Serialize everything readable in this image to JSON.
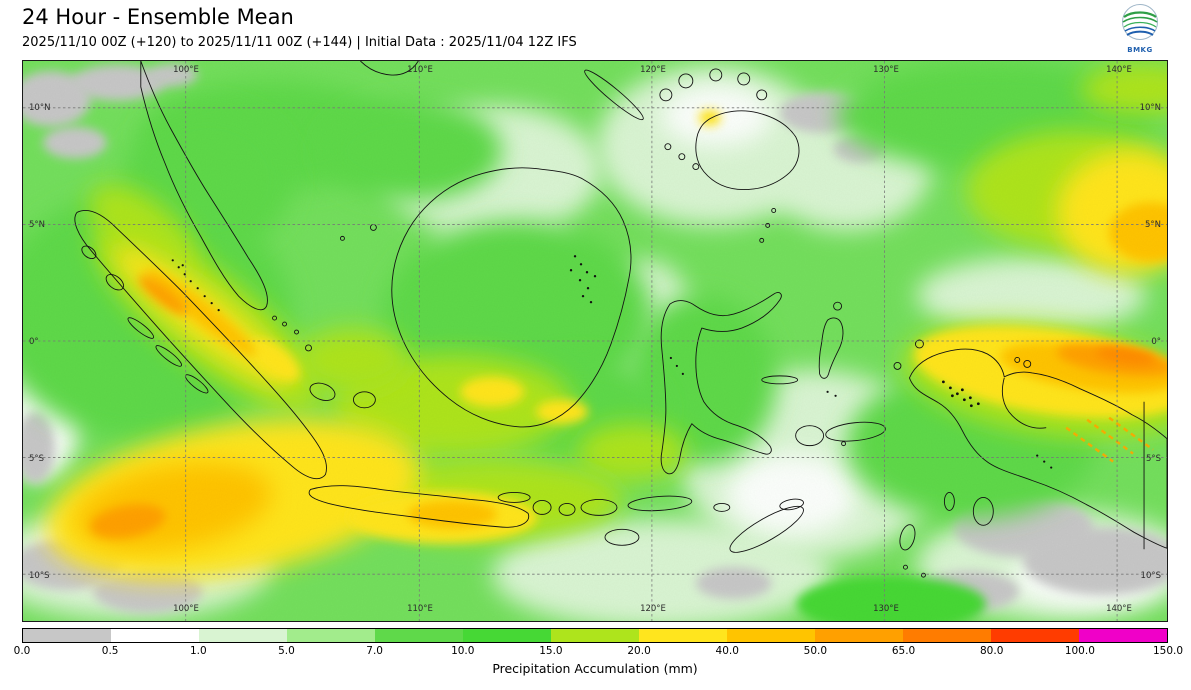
{
  "header": {
    "title": "24 Hour - Ensemble Mean",
    "subtitle": "2025/11/10 00Z (+120) to 2025/11/11 00Z (+144) | Initial Data : 2025/11/04 12Z IFS",
    "logo_text": "BMKG"
  },
  "map": {
    "lon_labels": [
      "100°E",
      "110°E",
      "120°E",
      "130°E",
      "140°E"
    ],
    "lat_labels": [
      "10°N",
      "5°N",
      "0°",
      "5°S",
      "10°S"
    ]
  },
  "colorbar": {
    "label": "Precipitation Accumulation (mm)",
    "ticks": [
      "0.0",
      "0.5",
      "1.0",
      "5.0",
      "7.0",
      "10.0",
      "15.0",
      "20.0",
      "40.0",
      "50.0",
      "65.0",
      "80.0",
      "100.0",
      "150.0"
    ],
    "colors": [
      "#c7c7c7",
      "#ffffff",
      "#d9f4d2",
      "#a2ec8c",
      "#5fd94a",
      "#46d835",
      "#aee41c",
      "#ffe51e",
      "#ffc400",
      "#ffa000",
      "#ff7c00",
      "#ff3c00",
      "#f000c8"
    ]
  },
  "chart_data": {
    "type": "heatmap",
    "title": "24 Hour - Ensemble Mean",
    "valid_period": "2025/11/10 00Z (+120) to 2025/11/11 00Z (+144)",
    "initial_data": "2025/11/04 12Z IFS",
    "x_tick_labels": [
      "100°E",
      "110°E",
      "120°E",
      "130°E",
      "140°E"
    ],
    "y_tick_labels": [
      "10°N",
      "5°N",
      "0°",
      "5°S",
      "10°S"
    ],
    "colorbar_label": "Precipitation Accumulation (mm)",
    "colorbar_bounds": [
      0.0,
      0.5,
      1.0,
      5.0,
      7.0,
      10.0,
      15.0,
      20.0,
      40.0,
      50.0,
      65.0,
      80.0,
      100.0,
      150.0
    ],
    "colorbar_colors": [
      "#c7c7c7",
      "#ffffff",
      "#d9f4d2",
      "#a2ec8c",
      "#5fd94a",
      "#46d835",
      "#aee41c",
      "#ffe51e",
      "#ffc400",
      "#ffa000",
      "#ff7c00",
      "#ff3c00",
      "#f000c8"
    ],
    "legend_position": "bottom"
  }
}
